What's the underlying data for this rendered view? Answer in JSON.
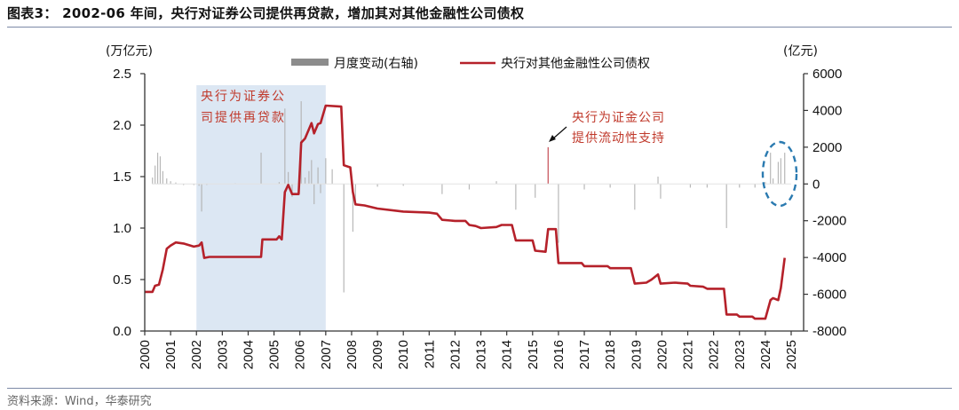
{
  "title": "图表3： 2002-06 年间，央行对证券公司提供再贷款，增加其对其他金融性公司债权",
  "source": "资料来源：Wind，华泰研究",
  "colors": {
    "line": "#b5212a",
    "bars": "#b0b0b0",
    "legend_bar": "#8c8c8c",
    "shade": "#dce7f3",
    "annotation": "#c0392b",
    "ellipse": "#2a7ab0",
    "axis": "#333333"
  },
  "chart_data": {
    "type": "line",
    "title": "2002-06 年间，央行对证券公司提供再贷款，增加其对其他金融性公司债权",
    "left_axis": {
      "label": "(万亿元)",
      "ticks": [
        "0.0",
        "0.5",
        "1.0",
        "1.5",
        "2.0",
        "2.5"
      ],
      "range": [
        0,
        2.5
      ]
    },
    "right_axis": {
      "label": "(亿元)",
      "ticks": [
        "-8000",
        "-6000",
        "-4000",
        "-2000",
        "0",
        "2000",
        "4000",
        "6000"
      ],
      "range": [
        -8000,
        6000
      ]
    },
    "x_ticks": [
      "2000",
      "2001",
      "2002",
      "2003",
      "2004",
      "2005",
      "2006",
      "2007",
      "2008",
      "2009",
      "2010",
      "2011",
      "2012",
      "2013",
      "2014",
      "2015",
      "2016",
      "2017",
      "2018",
      "2019",
      "2020",
      "2021",
      "2022",
      "2023",
      "2024",
      "2025"
    ],
    "x_range": [
      2000,
      2025
    ],
    "legend": [
      {
        "name": "月度变动(右轴)",
        "kind": "bar"
      },
      {
        "name": "央行对其他金融性公司债权",
        "kind": "line"
      }
    ],
    "shaded_region": {
      "from": 2002,
      "to": 2007
    },
    "series": [
      {
        "name": "央行对其他金融性公司债权",
        "axis": "left",
        "unit": "万亿元",
        "points": [
          [
            2000.0,
            0.38
          ],
          [
            2000.3,
            0.38
          ],
          [
            2000.4,
            0.44
          ],
          [
            2000.55,
            0.45
          ],
          [
            2000.7,
            0.6
          ],
          [
            2000.85,
            0.8
          ],
          [
            2001.0,
            0.83
          ],
          [
            2001.2,
            0.86
          ],
          [
            2001.5,
            0.85
          ],
          [
            2001.9,
            0.82
          ],
          [
            2002.1,
            0.83
          ],
          [
            2002.2,
            0.86
          ],
          [
            2002.3,
            0.71
          ],
          [
            2002.5,
            0.72
          ],
          [
            2003.5,
            0.72
          ],
          [
            2004.5,
            0.72
          ],
          [
            2004.55,
            0.89
          ],
          [
            2005.1,
            0.89
          ],
          [
            2005.2,
            0.92
          ],
          [
            2005.3,
            0.89
          ],
          [
            2005.42,
            1.35
          ],
          [
            2005.55,
            1.42
          ],
          [
            2005.7,
            1.33
          ],
          [
            2005.95,
            1.33
          ],
          [
            2006.05,
            1.83
          ],
          [
            2006.2,
            1.87
          ],
          [
            2006.45,
            2.02
          ],
          [
            2006.55,
            1.92
          ],
          [
            2006.7,
            2.01
          ],
          [
            2006.8,
            2.02
          ],
          [
            2007.0,
            2.19
          ],
          [
            2007.6,
            2.18
          ],
          [
            2007.7,
            1.61
          ],
          [
            2007.95,
            1.59
          ],
          [
            2008.05,
            1.35
          ],
          [
            2008.15,
            1.23
          ],
          [
            2008.5,
            1.22
          ],
          [
            2009.0,
            1.19
          ],
          [
            2010.0,
            1.16
          ],
          [
            2011.0,
            1.15
          ],
          [
            2011.3,
            1.14
          ],
          [
            2011.5,
            1.08
          ],
          [
            2012.0,
            1.07
          ],
          [
            2012.4,
            1.07
          ],
          [
            2012.55,
            1.03
          ],
          [
            2012.8,
            1.02
          ],
          [
            2013.0,
            1.0
          ],
          [
            2013.6,
            1.01
          ],
          [
            2013.8,
            1.03
          ],
          [
            2014.2,
            1.03
          ],
          [
            2014.35,
            0.88
          ],
          [
            2015.0,
            0.88
          ],
          [
            2015.1,
            0.78
          ],
          [
            2015.5,
            0.77
          ],
          [
            2015.6,
            0.99
          ],
          [
            2015.9,
            0.99
          ],
          [
            2016.0,
            0.66
          ],
          [
            2016.9,
            0.66
          ],
          [
            2017.0,
            0.63
          ],
          [
            2017.9,
            0.63
          ],
          [
            2018.0,
            0.61
          ],
          [
            2018.8,
            0.61
          ],
          [
            2018.95,
            0.46
          ],
          [
            2019.4,
            0.47
          ],
          [
            2019.6,
            0.5
          ],
          [
            2019.85,
            0.55
          ],
          [
            2019.95,
            0.46
          ],
          [
            2020.5,
            0.47
          ],
          [
            2021.0,
            0.46
          ],
          [
            2021.1,
            0.44
          ],
          [
            2021.6,
            0.43
          ],
          [
            2021.75,
            0.41
          ],
          [
            2022.4,
            0.41
          ],
          [
            2022.5,
            0.16
          ],
          [
            2022.9,
            0.16
          ],
          [
            2023.0,
            0.14
          ],
          [
            2023.5,
            0.14
          ],
          [
            2023.6,
            0.12
          ],
          [
            2024.0,
            0.12
          ],
          [
            2024.2,
            0.3
          ],
          [
            2024.3,
            0.32
          ],
          [
            2024.5,
            0.3
          ],
          [
            2024.6,
            0.42
          ],
          [
            2024.75,
            0.71
          ]
        ]
      },
      {
        "name": "月度变动(右轴)",
        "axis": "right",
        "unit": "亿元",
        "type": "bar",
        "bars": [
          [
            2000.3,
            350
          ],
          [
            2000.4,
            1000
          ],
          [
            2000.5,
            1700
          ],
          [
            2000.6,
            1500
          ],
          [
            2000.7,
            700
          ],
          [
            2000.85,
            300
          ],
          [
            2001.0,
            150
          ],
          [
            2001.2,
            80
          ],
          [
            2001.5,
            -60
          ],
          [
            2001.9,
            -60
          ],
          [
            2002.1,
            -100
          ],
          [
            2002.2,
            -1500
          ],
          [
            2002.4,
            -50
          ],
          [
            2003.5,
            30
          ],
          [
            2004.5,
            1700
          ],
          [
            2005.2,
            100
          ],
          [
            2005.42,
            4100
          ],
          [
            2005.55,
            650
          ],
          [
            2005.7,
            -700
          ],
          [
            2006.05,
            4500
          ],
          [
            2006.2,
            350
          ],
          [
            2006.35,
            700
          ],
          [
            2006.45,
            1300
          ],
          [
            2006.55,
            -1100
          ],
          [
            2006.7,
            900
          ],
          [
            2006.8,
            -500
          ],
          [
            2007.0,
            1400
          ],
          [
            2007.25,
            800
          ],
          [
            2007.7,
            -5900
          ],
          [
            2008.05,
            -2600
          ],
          [
            2008.15,
            -1100
          ],
          [
            2009.0,
            -150
          ],
          [
            2010.0,
            -100
          ],
          [
            2011.5,
            -550
          ],
          [
            2012.55,
            -300
          ],
          [
            2013.6,
            150
          ],
          [
            2014.35,
            -1400
          ],
          [
            2015.1,
            -750
          ],
          [
            2015.6,
            2000
          ],
          [
            2016.0,
            -3200
          ],
          [
            2017.0,
            -300
          ],
          [
            2018.0,
            -200
          ],
          [
            2018.95,
            -1400
          ],
          [
            2019.85,
            400
          ],
          [
            2019.95,
            -800
          ],
          [
            2021.1,
            -200
          ],
          [
            2021.75,
            -200
          ],
          [
            2022.5,
            -2400
          ],
          [
            2023.0,
            -200
          ],
          [
            2023.6,
            -200
          ],
          [
            2024.0,
            100
          ],
          [
            2024.2,
            1700
          ],
          [
            2024.3,
            300
          ],
          [
            2024.5,
            1200
          ],
          [
            2024.6,
            1400
          ],
          [
            2024.75,
            1700
          ]
        ]
      }
    ],
    "annotations": [
      {
        "text_lines": [
          "央行为证券公",
          "司提供再贷款"
        ],
        "position": "inside shaded region"
      },
      {
        "text_lines": [
          "央行为证金公司",
          "提供流动性支持"
        ],
        "position": "near 2015 spike",
        "arrow": true
      },
      {
        "shape": "dashed ellipse",
        "around": "2024 monthly changes"
      }
    ]
  }
}
